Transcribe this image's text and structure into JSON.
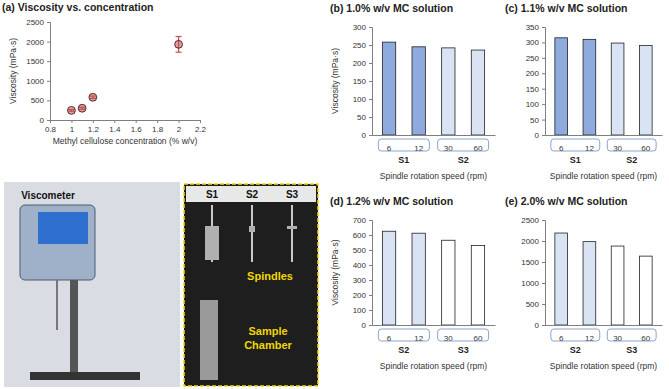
{
  "chart_data": [
    {
      "type": "scatter",
      "title": "(a) Viscosity vs. concentration",
      "x_label": "Methyl cellulose concentration (% w/v)",
      "y_label": "Viscosity (mPa·s)",
      "x": [
        1.0,
        1.1,
        1.2,
        2.0
      ],
      "values": [
        245,
        300,
        580,
        1930
      ],
      "errors": [
        20,
        25,
        30,
        200
      ],
      "color": "#c0504d",
      "marker": "circle",
      "xlim": [
        0.8,
        2.2
      ],
      "xticks": [
        0.8,
        1,
        1.2,
        1.4,
        1.6,
        1.8,
        2,
        2.2
      ],
      "ylim": [
        0,
        2500
      ],
      "yticks": [
        0,
        500,
        1000,
        1500,
        2000,
        2500
      ],
      "grid": false
    },
    {
      "type": "bar",
      "title": "(b) 1.0% w/v MC solution",
      "x_label": "Spindle rotation speed (rpm)",
      "y_label": "Viscosity (mPa·s)",
      "categories": [
        "6",
        "12",
        "30",
        "60"
      ],
      "series": [
        {
          "name": "S1",
          "color": "#8faadc",
          "values": [
            258,
            245,
            null,
            null
          ]
        },
        {
          "name": "S2",
          "color": "#dae3f3",
          "values": [
            null,
            null,
            242,
            236
          ]
        }
      ],
      "ylim": [
        0,
        300
      ],
      "yticks": [
        0,
        50,
        100,
        150,
        200,
        250,
        300
      ],
      "grid": false
    },
    {
      "type": "bar",
      "title": "(c) 1.1% w/v MC solution",
      "x_label": "Spindle rotation speed (rpm)",
      "categories": [
        "6",
        "12",
        "30",
        "60"
      ],
      "series": [
        {
          "name": "S1",
          "color": "#8faadc",
          "values": [
            315,
            310,
            null,
            null
          ]
        },
        {
          "name": "S2",
          "color": "#dae3f3",
          "values": [
            null,
            null,
            298,
            290
          ]
        }
      ],
      "ylim": [
        0,
        350
      ],
      "yticks": [
        0,
        50,
        100,
        150,
        200,
        250,
        300,
        350
      ],
      "grid": false
    },
    {
      "type": "bar",
      "title": "(d) 1.2% w/v MC solution",
      "x_label": "Spindle rotation speed (rpm)",
      "y_label": "Viscosity (mPa·s)",
      "categories": [
        "6",
        "12",
        "30",
        "60"
      ],
      "series": [
        {
          "name": "S2",
          "color": "#dae3f3",
          "values": [
            625,
            612,
            null,
            null
          ]
        },
        {
          "name": "S3",
          "color": "#ffffff",
          "values": [
            null,
            null,
            565,
            530
          ]
        }
      ],
      "ylim": [
        0,
        700
      ],
      "yticks": [
        0,
        100,
        200,
        300,
        400,
        500,
        600,
        700
      ],
      "grid": false
    },
    {
      "type": "bar",
      "title": "(e) 2.0% w/v MC solution",
      "x_label": "Spindle rotation speed (rpm)",
      "categories": [
        "6",
        "12",
        "30",
        "60"
      ],
      "series": [
        {
          "name": "S2",
          "color": "#dae3f3",
          "values": [
            2190,
            1985,
            null,
            null
          ]
        },
        {
          "name": "S3",
          "color": "#ffffff",
          "values": [
            null,
            null,
            1880,
            1640
          ]
        }
      ],
      "ylim": [
        0,
        2500
      ],
      "yticks": [
        0,
        500,
        1000,
        1500,
        2000,
        2500
      ],
      "grid": false
    }
  ],
  "photo": {
    "title": "Viscometer",
    "spindle_names": [
      "S1",
      "S2",
      "S3"
    ],
    "spindles_label": "Spindles",
    "chamber_label": [
      "Sample",
      "Chamber"
    ]
  }
}
